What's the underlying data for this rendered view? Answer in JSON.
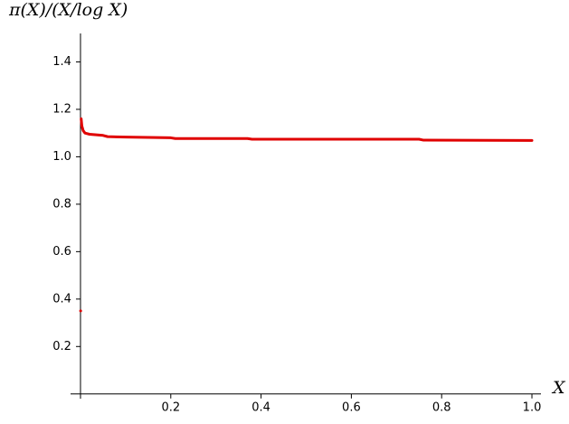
{
  "chart_data": {
    "type": "line",
    "y_label": "π(X)/(X/log X)",
    "x_label": "X",
    "x": [
      0.0002,
      0.001,
      0.0015,
      0.003,
      0.006,
      0.01,
      0.02,
      0.05,
      0.06,
      0.1,
      0.2,
      0.21,
      0.37,
      0.38,
      0.75,
      0.76,
      1.0
    ],
    "series": [
      {
        "color": "#e00000",
        "values": [
          0.35,
          null,
          1.16,
          1.13,
          1.11,
          1.1,
          1.095,
          1.09,
          1.085,
          1.083,
          1.08,
          1.077,
          1.077,
          1.074,
          1.074,
          1.07,
          1.069
        ]
      }
    ],
    "xlim": [
      -0.022,
      1.02
    ],
    "ylim": [
      -0.02,
      1.52
    ],
    "xticks": [
      0.2,
      0.4,
      0.6,
      0.8,
      {
        "value": 1,
        "label": "1.0"
      }
    ],
    "yticks": [
      0.2,
      0.4,
      0.6,
      0.8,
      {
        "value": 1,
        "label": "1.0"
      },
      1.2,
      1.4
    ]
  }
}
